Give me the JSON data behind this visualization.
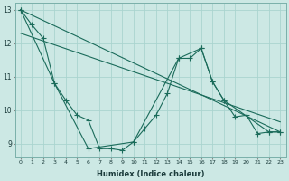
{
  "xlabel": "Humidex (Indice chaleur)",
  "background_color": "#cce8e4",
  "line_color": "#1a6b5a",
  "grid_color": "#aad4cf",
  "xlim": [
    -0.5,
    23.5
  ],
  "ylim": [
    8.6,
    13.2
  ],
  "yticks": [
    9,
    10,
    11,
    12,
    13
  ],
  "xticks": [
    0,
    1,
    2,
    3,
    4,
    5,
    6,
    7,
    8,
    9,
    10,
    11,
    12,
    13,
    14,
    15,
    16,
    17,
    18,
    19,
    20,
    21,
    22,
    23
  ],
  "line1": [
    [
      0,
      13.0
    ],
    [
      1,
      12.55
    ],
    [
      2,
      12.15
    ],
    [
      3,
      10.8
    ],
    [
      4,
      10.3
    ],
    [
      5,
      9.85
    ],
    [
      6,
      9.7
    ],
    [
      7,
      8.85
    ],
    [
      8,
      8.85
    ],
    [
      9,
      8.8
    ],
    [
      10,
      9.05
    ],
    [
      11,
      9.45
    ],
    [
      12,
      9.85
    ],
    [
      13,
      10.5
    ],
    [
      14,
      11.55
    ],
    [
      15,
      11.55
    ],
    [
      16,
      11.85
    ],
    [
      17,
      10.85
    ],
    [
      18,
      10.3
    ],
    [
      19,
      9.8
    ],
    [
      20,
      9.85
    ],
    [
      21,
      9.3
    ],
    [
      22,
      9.35
    ],
    [
      23,
      9.35
    ]
  ],
  "line2": [
    [
      0,
      13.0
    ],
    [
      3,
      10.8
    ],
    [
      6,
      8.85
    ],
    [
      10,
      9.05
    ],
    [
      14,
      11.55
    ],
    [
      16,
      11.85
    ],
    [
      17,
      10.85
    ],
    [
      18,
      10.3
    ],
    [
      22,
      9.35
    ],
    [
      23,
      9.35
    ]
  ],
  "line3_straight": [
    [
      0,
      13.0
    ],
    [
      23,
      9.35
    ]
  ],
  "line4_straight": [
    [
      0,
      12.3
    ],
    [
      23,
      9.65
    ]
  ]
}
